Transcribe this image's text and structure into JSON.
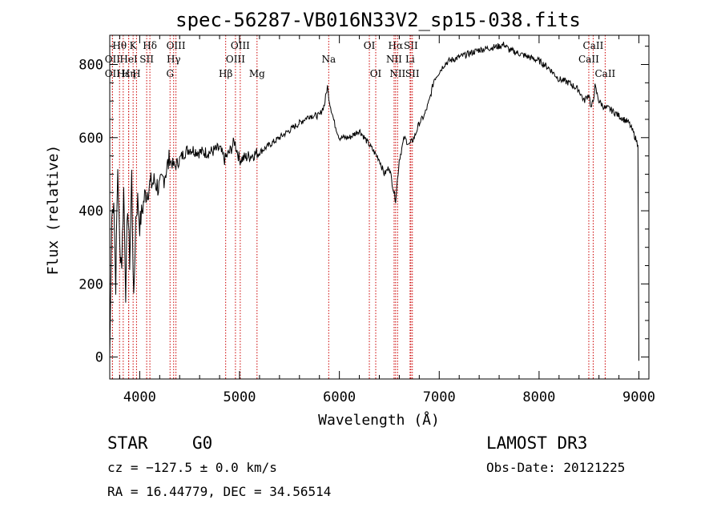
{
  "chart_data": {
    "type": "line",
    "title": "spec-56287-VB016N33V2_sp15-038.fits",
    "xlabel": "Wavelength (Å)",
    "ylabel": "Flux (relative)",
    "xlim": [
      3700,
      9100
    ],
    "ylim": [
      -60,
      880
    ],
    "xticks": [
      4000,
      5000,
      6000,
      7000,
      8000,
      9000
    ],
    "yticks": [
      0,
      200,
      400,
      600,
      800
    ],
    "grid": false,
    "spectrum": {
      "x": [
        3700,
        3720,
        3740,
        3760,
        3780,
        3800,
        3820,
        3840,
        3860,
        3880,
        3900,
        3920,
        3940,
        3960,
        3980,
        4000,
        4050,
        4100,
        4150,
        4200,
        4250,
        4300,
        4350,
        4400,
        4450,
        4500,
        4600,
        4700,
        4800,
        4850,
        4900,
        4950,
        5000,
        5100,
        5200,
        5300,
        5400,
        5500,
        5600,
        5700,
        5800,
        5850,
        5880,
        5900,
        5950,
        6000,
        6100,
        6200,
        6300,
        6350,
        6400,
        6450,
        6500,
        6540,
        6563,
        6600,
        6650,
        6700,
        6750,
        6800,
        6850,
        6900,
        6950,
        7000,
        7050,
        7100,
        7200,
        7300,
        7400,
        7500,
        7600,
        7650,
        7700,
        7800,
        7900,
        8000,
        8100,
        8200,
        8300,
        8400,
        8450,
        8500,
        8520,
        8542,
        8560,
        8600,
        8662,
        8700,
        8800,
        8900,
        8950,
        8990,
        9000
      ],
      "y": [
        0,
        380,
        440,
        200,
        520,
        300,
        260,
        460,
        180,
        420,
        260,
        500,
        140,
        380,
        430,
        360,
        440,
        470,
        480,
        460,
        500,
        540,
        520,
        540,
        560,
        570,
        560,
        560,
        570,
        540,
        560,
        590,
        540,
        550,
        560,
        580,
        600,
        620,
        640,
        660,
        660,
        690,
        740,
        700,
        640,
        600,
        600,
        620,
        580,
        560,
        540,
        500,
        520,
        460,
        430,
        540,
        600,
        580,
        600,
        640,
        660,
        700,
        760,
        780,
        800,
        810,
        820,
        830,
        840,
        845,
        850,
        855,
        840,
        830,
        820,
        810,
        790,
        760,
        750,
        730,
        700,
        720,
        680,
        700,
        740,
        700,
        680,
        680,
        660,
        640,
        610,
        580,
        -10
      ],
      "color": "#000000"
    },
    "lines": [
      {
        "label": "Hθ",
        "x": 3798,
        "row": 1
      },
      {
        "label": "OII",
        "x": 3727,
        "row": 2
      },
      {
        "label": "OII",
        "x": 3727,
        "row": 3
      },
      {
        "label": "Hε",
        "x": 3835,
        "row": 3
      },
      {
        "label": "K",
        "x": 3934,
        "row": 1
      },
      {
        "label": "HeI",
        "x": 3889,
        "row": 2
      },
      {
        "label": "Hη",
        "x": 3890,
        "row": 3
      },
      {
        "label": "H",
        "x": 3968,
        "row": 3
      },
      {
        "label": "Hδ",
        "x": 4102,
        "row": 1
      },
      {
        "label": "SII",
        "x": 4070,
        "row": 2
      },
      {
        "label": "OIII",
        "x": 4363,
        "row": 1
      },
      {
        "label": "Hγ",
        "x": 4340,
        "row": 2
      },
      {
        "label": "G",
        "x": 4304,
        "row": 3
      },
      {
        "label": "Hβ",
        "x": 4861,
        "row": 3
      },
      {
        "label": "OIII",
        "x": 5007,
        "row": 1
      },
      {
        "label": "OIII",
        "x": 4959,
        "row": 2
      },
      {
        "label": "Mg",
        "x": 5175,
        "row": 3
      },
      {
        "label": "Na",
        "x": 5893,
        "row": 2
      },
      {
        "label": "OI",
        "x": 6300,
        "row": 1
      },
      {
        "label": "OI",
        "x": 6364,
        "row": 3
      },
      {
        "label": "Hα",
        "x": 6563,
        "row": 1
      },
      {
        "label": "SII",
        "x": 6716,
        "row": 1
      },
      {
        "label": "NII",
        "x": 6548,
        "row": 2
      },
      {
        "label": "Li",
        "x": 6708,
        "row": 2
      },
      {
        "label": "NII",
        "x": 6583,
        "row": 3
      },
      {
        "label": "SII",
        "x": 6731,
        "row": 3
      },
      {
        "label": "CaII",
        "x": 8542,
        "row": 1
      },
      {
        "label": "CaII",
        "x": 8498,
        "row": 2
      },
      {
        "label": "CaII",
        "x": 8662,
        "row": 3
      }
    ],
    "line_color": "#cc0000"
  },
  "footer": {
    "class_label": "STAR",
    "subclass": "G0",
    "survey": "LAMOST DR3",
    "cz": "cz = −127.5 ± 0.0 km/s",
    "obs_date": "Obs-Date: 20121225",
    "radec": "RA =  16.44779, DEC =  34.56514"
  }
}
